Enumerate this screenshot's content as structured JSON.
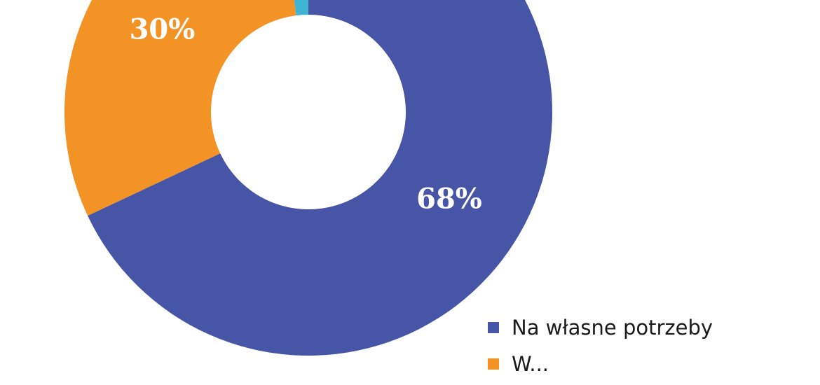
{
  "chart_data": {
    "type": "pie",
    "variant": "donut",
    "slices": [
      {
        "label": "Na własne potrzeby",
        "value": 68,
        "display": "68%",
        "color": "#4655A6"
      },
      {
        "label": "W...",
        "value": 30,
        "display": "30%",
        "color": "#F39325"
      },
      {
        "label": "",
        "value": 2,
        "display": "",
        "color": "#3FB4D5"
      }
    ],
    "legend_placement": "bottom-right"
  }
}
